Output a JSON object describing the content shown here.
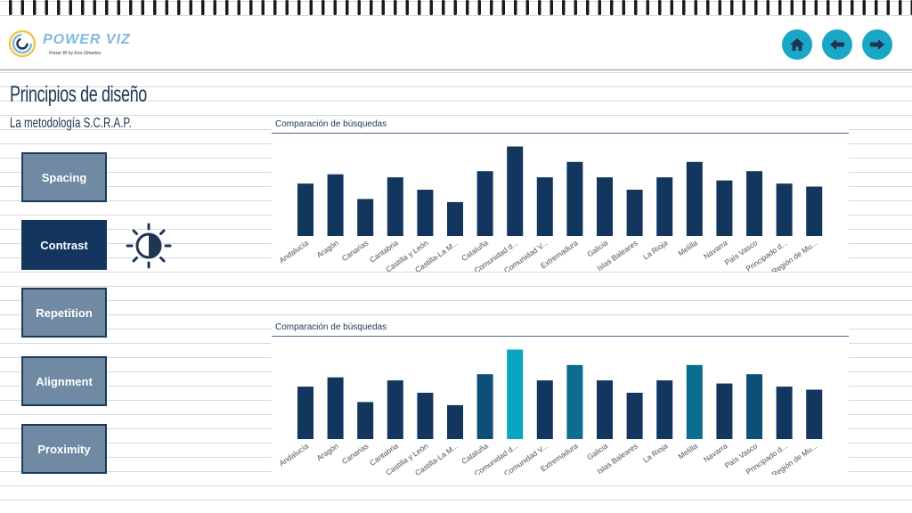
{
  "header": {
    "logo_title": "POWER VIZ",
    "logo_subtitle": "Power BI by Eva Olmedes",
    "nav": [
      {
        "name": "home",
        "icon": "home-icon"
      },
      {
        "name": "back",
        "icon": "arrow-left-icon"
      },
      {
        "name": "forward",
        "icon": "arrow-right-icon"
      }
    ]
  },
  "page": {
    "title": "Principios de diseño",
    "subtitle": "La metodología S.C.R.A.P."
  },
  "scrap_buttons": [
    {
      "label": "Spacing",
      "active": false
    },
    {
      "label": "Contrast",
      "active": true
    },
    {
      "label": "Repetition",
      "active": false
    },
    {
      "label": "Alignment",
      "active": false
    },
    {
      "label": "Proximity",
      "active": false
    }
  ],
  "colors": {
    "bar_default": "#12365e",
    "bar_accent": "#0aa5c2",
    "bar_mid": "#0c6d8e",
    "bar_dark_teal": "#0e4f78",
    "nav_button": "#1aa7c7",
    "active_button": "#14365e",
    "inactive_button": "#6f8aa2"
  },
  "chart_data": [
    {
      "type": "bar",
      "title": "Comparación de búsquedas",
      "categories": [
        "Andalucía",
        "Aragón",
        "Canarias",
        "Cantabria",
        "Castilla y León",
        "Castilla-La M...",
        "Cataluña",
        "Comunidad d...",
        "Comunidad V...",
        "Extremadura",
        "Galicia",
        "Islas Baleares",
        "La Rioja",
        "Melilla",
        "Navarra",
        "País Vasco",
        "Principado d...",
        "Región de Mu..."
      ],
      "values": [
        17,
        20,
        12,
        19,
        15,
        11,
        21,
        29,
        19,
        24,
        19,
        15,
        19,
        24,
        18,
        21,
        17,
        16
      ],
      "colors": [
        "bar_default",
        "bar_default",
        "bar_default",
        "bar_default",
        "bar_default",
        "bar_default",
        "bar_default",
        "bar_default",
        "bar_default",
        "bar_default",
        "bar_default",
        "bar_default",
        "bar_default",
        "bar_default",
        "bar_default",
        "bar_default",
        "bar_default",
        "bar_default"
      ],
      "ylim": [
        0,
        30
      ]
    },
    {
      "type": "bar",
      "title": "Comparación de búsquedas",
      "categories": [
        "Andalucía",
        "Aragón",
        "Canarias",
        "Cantabria",
        "Castilla y León",
        "Castilla-La M...",
        "Cataluña",
        "Comunidad d...",
        "Comunidad V...",
        "Extremadura",
        "Galicia",
        "Islas Baleares",
        "La Rioja",
        "Melilla",
        "Navarra",
        "País Vasco",
        "Principado d...",
        "Región de Mu..."
      ],
      "values": [
        17,
        20,
        12,
        19,
        15,
        11,
        21,
        29,
        19,
        24,
        19,
        15,
        19,
        24,
        18,
        21,
        17,
        16
      ],
      "colors": [
        "bar_default",
        "bar_default",
        "bar_default",
        "bar_default",
        "bar_default",
        "bar_default",
        "bar_dark_teal",
        "bar_accent",
        "bar_default",
        "bar_mid",
        "bar_default",
        "bar_default",
        "bar_default",
        "bar_mid",
        "bar_default",
        "bar_dark_teal",
        "bar_default",
        "bar_default"
      ],
      "ylim": [
        0,
        30
      ]
    }
  ]
}
